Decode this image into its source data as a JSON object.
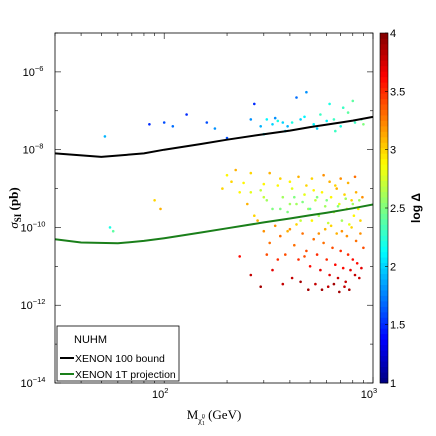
{
  "chart_data": {
    "type": "scatter",
    "title": "",
    "xlabel_main": "M",
    "xlabel_sub": "χ̃",
    "xlabel_sub2": "0",
    "xlabel_sub3": "1",
    "xlabel_unit": " (GeV)",
    "ylabel_main": "σ",
    "ylabel_sub": "SI",
    "ylabel_unit": " (pb)",
    "colorbar_label": "log Δ",
    "x_scale": "log",
    "y_scale": "log",
    "xlim": [
      30,
      1000
    ],
    "ylim": [
      1e-14,
      1e-05
    ],
    "clim": [
      1,
      4
    ],
    "x_ticks": [
      {
        "value": 100,
        "base": "10",
        "exp": "2"
      },
      {
        "value": 1000,
        "base": "10",
        "exp": "3"
      }
    ],
    "y_ticks": [
      {
        "value": 1e-14,
        "base": "10",
        "exp": "−14"
      },
      {
        "value": 1e-12,
        "base": "10",
        "exp": "−12"
      },
      {
        "value": 1e-10,
        "base": "10",
        "exp": "−10"
      },
      {
        "value": 1e-08,
        "base": "10",
        "exp": "−8"
      },
      {
        "value": 1e-06,
        "base": "10",
        "exp": "−6"
      }
    ],
    "colorbar_ticks": [
      "1",
      "1.5",
      "2",
      "2.5",
      "3",
      "3.5",
      "4"
    ],
    "legend": {
      "placement": "bottom-left",
      "title": "NUHM",
      "entries": [
        {
          "label": "XENON 100 bound",
          "color": "#000000"
        },
        {
          "label": "XENON 1T projection",
          "color": "#1a7f1a"
        }
      ]
    },
    "series": [
      {
        "name": "XENON 100 bound",
        "type": "line",
        "color": "#000000",
        "x": [
          30,
          50,
          80,
          100,
          150,
          200,
          300,
          400,
          500,
          600,
          700,
          800,
          1000
        ],
        "y": [
          8e-09,
          6.5e-09,
          8e-09,
          1e-08,
          1.4e-08,
          1.8e-08,
          2.5e-08,
          3.1e-08,
          3.8e-08,
          4.4e-08,
          5e-08,
          5.6e-08,
          7e-08
        ]
      },
      {
        "name": "XENON 1T projection",
        "type": "line",
        "color": "#1a7f1a",
        "x": [
          30,
          40,
          60,
          80,
          100,
          150,
          200,
          300,
          400,
          500,
          600,
          800,
          1000
        ],
        "y": [
          5e-11,
          4.1e-11,
          3.9e-11,
          4.5e-11,
          5.3e-11,
          7.4e-11,
          9.5e-11,
          1.35e-10,
          1.7e-10,
          2.05e-10,
          2.4e-10,
          3.1e-10,
          3.9e-10
        ]
      },
      {
        "name": "",
        "type": "scatter",
        "points": [
          [
            52,
            2.2e-08,
            1.9
          ],
          [
            85,
            4.5e-08,
            1.5
          ],
          [
            100,
            5e-08,
            1.6
          ],
          [
            110,
            4e-08,
            1.7
          ],
          [
            128,
            8e-08,
            1.5
          ],
          [
            160,
            5e-08,
            1.6
          ],
          [
            175,
            3.5e-08,
            1.8
          ],
          [
            200,
            2e-08,
            1.6
          ],
          [
            260,
            6e-08,
            1.8
          ],
          [
            270,
            1.5e-07,
            1.5
          ],
          [
            290,
            4e-08,
            1.9
          ],
          [
            310,
            6e-08,
            2.1
          ],
          [
            330,
            4.5e-08,
            2.0
          ],
          [
            350,
            5.5e-08,
            2.2
          ],
          [
            370,
            5e-08,
            2.0
          ],
          [
            390,
            4e-08,
            1.9
          ],
          [
            410,
            5e-08,
            2.2
          ],
          [
            430,
            2.2e-07,
            1.7
          ],
          [
            450,
            6e-08,
            2.0
          ],
          [
            480,
            3e-07,
            1.8
          ],
          [
            520,
            4.5e-08,
            2.1
          ],
          [
            560,
            8e-08,
            2.3
          ],
          [
            600,
            5.5e-08,
            2.1
          ],
          [
            620,
            1.5e-07,
            2.2
          ],
          [
            650,
            6e-08,
            2.3
          ],
          [
            700,
            4e-08,
            2.2
          ],
          [
            760,
            9e-08,
            2.4
          ],
          [
            820,
            5e-08,
            2.3
          ],
          [
            880,
            6e-08,
            2.4
          ],
          [
            540,
            3.5e-08,
            2.0
          ],
          [
            470,
            7e-08,
            2.1
          ],
          [
            380,
            3e-08,
            2.0
          ],
          [
            340,
            6.5e-08,
            1.8
          ],
          [
            300,
            2.5e-08,
            2.1
          ],
          [
            660,
            3e-08,
            2.3
          ],
          [
            720,
            1.2e-07,
            2.3
          ],
          [
            800,
            1.8e-07,
            2.4
          ],
          [
            900,
            4.5e-08,
            2.5
          ],
          [
            55,
            1e-10,
            2.2
          ],
          [
            57,
            8e-11,
            2.4
          ],
          [
            90,
            5e-10,
            3.0
          ],
          [
            96,
            3e-10,
            3.1
          ],
          [
            190,
            1e-09,
            3.0
          ],
          [
            210,
            1.5e-09,
            3.0
          ],
          [
            230,
            8e-10,
            2.9
          ],
          [
            250,
            4e-10,
            3.1
          ],
          [
            270,
            2e-10,
            3.0
          ],
          [
            290,
            9e-10,
            2.7
          ],
          [
            310,
            5e-10,
            2.6
          ],
          [
            330,
            3e-10,
            2.5
          ],
          [
            350,
            1.2e-09,
            2.9
          ],
          [
            370,
            6e-10,
            2.6
          ],
          [
            390,
            2.5e-10,
            2.5
          ],
          [
            410,
            1e-09,
            2.8
          ],
          [
            430,
            4e-10,
            2.6
          ],
          [
            450,
            1.5e-10,
            2.7
          ],
          [
            470,
            7e-10,
            2.8
          ],
          [
            490,
            3e-10,
            2.6
          ],
          [
            510,
            1.8e-09,
            3.0
          ],
          [
            530,
            5e-10,
            2.7
          ],
          [
            550,
            2e-10,
            2.6
          ],
          [
            570,
            8e-10,
            2.9
          ],
          [
            590,
            3.5e-10,
            2.6
          ],
          [
            610,
            1.3e-10,
            2.7
          ],
          [
            630,
            6e-10,
            2.9
          ],
          [
            650,
            2.5e-10,
            2.7
          ],
          [
            670,
            1e-09,
            3.1
          ],
          [
            690,
            4e-10,
            2.8
          ],
          [
            710,
            1.5e-10,
            2.6
          ],
          [
            730,
            7e-10,
            3.0
          ],
          [
            750,
            3e-10,
            2.8
          ],
          [
            770,
            1.2e-10,
            2.8
          ],
          [
            790,
            5e-10,
            3.0
          ],
          [
            810,
            2e-10,
            2.9
          ],
          [
            830,
            8e-10,
            3.1
          ],
          [
            850,
            3e-10,
            2.9
          ],
          [
            870,
            1.5e-10,
            3.0
          ],
          [
            890,
            6e-10,
            3.2
          ],
          [
            320,
            2.5e-09,
            3.1
          ],
          [
            360,
            1.8e-09,
            3.0
          ],
          [
            400,
            1.5e-09,
            2.9
          ],
          [
            440,
            2e-09,
            3.1
          ],
          [
            480,
            1.2e-09,
            3.0
          ],
          [
            520,
            9e-10,
            2.9
          ],
          [
            580,
            2.2e-09,
            3.2
          ],
          [
            620,
            1.5e-09,
            3.1
          ],
          [
            660,
            1.2e-09,
            3.0
          ],
          [
            700,
            1.8e-09,
            3.2
          ],
          [
            760,
            1.4e-09,
            3.1
          ],
          [
            820,
            2e-09,
            3.3
          ],
          [
            220,
            3e-09,
            3.1
          ],
          [
            260,
            2.5e-09,
            3.0
          ],
          [
            300,
            1.3e-09,
            2.9
          ],
          [
            280,
            1.5e-10,
            3.1
          ],
          [
            300,
            8e-11,
            3.2
          ],
          [
            320,
            4e-11,
            3.3
          ],
          [
            340,
            1.1e-10,
            3.2
          ],
          [
            360,
            6e-11,
            3.3
          ],
          [
            380,
            2e-11,
            3.4
          ],
          [
            400,
            9e-11,
            3.2
          ],
          [
            420,
            3.5e-11,
            3.3
          ],
          [
            440,
            1.5e-11,
            3.5
          ],
          [
            460,
            7e-11,
            3.3
          ],
          [
            480,
            2.5e-11,
            3.4
          ],
          [
            500,
            1e-11,
            3.6
          ],
          [
            520,
            5e-11,
            3.3
          ],
          [
            540,
            2e-11,
            3.5
          ],
          [
            560,
            8e-12,
            3.7
          ],
          [
            580,
            4e-11,
            3.3
          ],
          [
            600,
            1.5e-11,
            3.5
          ],
          [
            620,
            6e-12,
            3.7
          ],
          [
            640,
            3e-11,
            3.4
          ],
          [
            660,
            1.1e-11,
            3.6
          ],
          [
            680,
            5e-12,
            3.8
          ],
          [
            700,
            2.5e-11,
            3.5
          ],
          [
            720,
            9e-12,
            3.6
          ],
          [
            740,
            4e-12,
            3.8
          ],
          [
            760,
            2e-11,
            3.5
          ],
          [
            780,
            8e-12,
            3.7
          ],
          [
            800,
            1.5e-11,
            3.6
          ],
          [
            820,
            6e-12,
            3.8
          ],
          [
            840,
            1.2e-11,
            3.6
          ],
          [
            860,
            5e-12,
            3.8
          ],
          [
            880,
            9e-12,
            3.7
          ],
          [
            900,
            3e-11,
            3.4
          ],
          [
            230,
            1.8e-11,
            3.6
          ],
          [
            260,
            6e-12,
            3.8
          ],
          [
            290,
            3e-12,
            3.9
          ],
          [
            330,
            8e-12,
            3.7
          ],
          [
            370,
            3.5e-12,
            3.8
          ],
          [
            410,
            5e-12,
            3.8
          ],
          [
            450,
            4e-12,
            3.9
          ],
          [
            490,
            2.5e-12,
            3.9
          ],
          [
            530,
            3.5e-12,
            3.8
          ],
          [
            570,
            2.5e-12,
            3.9
          ],
          [
            610,
            3e-12,
            3.8
          ],
          [
            650,
            3.5e-12,
            3.9
          ],
          [
            690,
            2.2e-12,
            3.9
          ],
          [
            730,
            3e-12,
            3.8
          ],
          [
            770,
            2.5e-12,
            3.9
          ],
          [
            310,
            2e-11,
            3.4
          ],
          [
            350,
            1.5e-11,
            3.5
          ],
          [
            390,
            8e-11,
            3.1
          ],
          [
            430,
            1.2e-10,
            3.0
          ],
          [
            470,
            1.8e-11,
            3.4
          ],
          [
            510,
            1.5e-10,
            2.9
          ],
          [
            550,
            7e-11,
            3.2
          ],
          [
            590,
            9e-11,
            3.1
          ],
          [
            630,
            1.1e-10,
            3.0
          ],
          [
            670,
            7e-11,
            3.1
          ],
          [
            710,
            8e-11,
            3.2
          ],
          [
            750,
            6e-11,
            3.2
          ],
          [
            790,
            1e-10,
            3.0
          ],
          [
            830,
            4.5e-11,
            3.3
          ],
          [
            870,
            7e-11,
            3.2
          ],
          [
            360,
            3e-10,
            2.5
          ],
          [
            420,
            6e-10,
            2.5
          ],
          [
            460,
            4.5e-10,
            2.5
          ],
          [
            500,
            3e-10,
            2.4
          ],
          [
            540,
            6e-10,
            2.5
          ],
          [
            600,
            5e-10,
            2.5
          ],
          [
            680,
            3.5e-10,
            2.5
          ],
          [
            740,
            5.5e-10,
            2.6
          ],
          [
            800,
            4e-10,
            2.6
          ],
          [
            860,
            5e-10,
            2.6
          ],
          [
            400,
            4e-10,
            2.6
          ],
          [
            300,
            6e-10,
            2.7
          ],
          [
            260,
            8e-10,
            2.8
          ],
          [
            240,
            1.4e-09,
            2.9
          ],
          [
            200,
            2.2e-09,
            2.9
          ]
        ]
      }
    ]
  }
}
